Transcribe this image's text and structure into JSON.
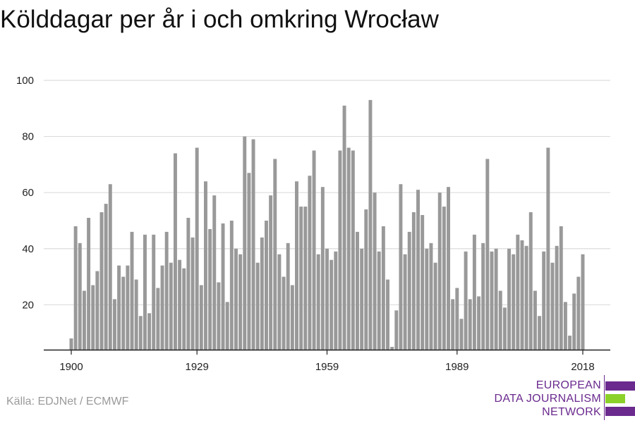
{
  "title": "Kölddagar per år i och omkring Wrocław",
  "source": "Källa: EDJNet / ECMWF",
  "logo": {
    "lines": [
      "EUROPEAN",
      "DATA JOURNALISM",
      "NETWORK"
    ],
    "colors": {
      "purple": "#6a2a8e",
      "green": "#8cd12a"
    }
  },
  "colors": {
    "bar": "#999999",
    "grid": "#dddddd",
    "axis": "#222222"
  },
  "chart_data": {
    "type": "bar",
    "title": "Kölddagar per år i och omkring Wrocław",
    "xlabel": "",
    "ylabel": "",
    "x": [
      1900,
      1901,
      1902,
      1903,
      1904,
      1905,
      1906,
      1907,
      1908,
      1909,
      1910,
      1911,
      1912,
      1913,
      1914,
      1915,
      1916,
      1917,
      1918,
      1919,
      1920,
      1921,
      1922,
      1923,
      1924,
      1925,
      1926,
      1927,
      1928,
      1929,
      1930,
      1931,
      1932,
      1933,
      1934,
      1935,
      1936,
      1937,
      1938,
      1939,
      1940,
      1941,
      1942,
      1943,
      1944,
      1945,
      1946,
      1947,
      1948,
      1949,
      1950,
      1951,
      1952,
      1953,
      1954,
      1955,
      1956,
      1957,
      1958,
      1959,
      1960,
      1961,
      1962,
      1963,
      1964,
      1965,
      1966,
      1967,
      1968,
      1969,
      1970,
      1971,
      1972,
      1973,
      1974,
      1975,
      1976,
      1977,
      1978,
      1979,
      1980,
      1981,
      1982,
      1983,
      1984,
      1985,
      1986,
      1987,
      1988,
      1989,
      1990,
      1991,
      1992,
      1993,
      1994,
      1995,
      1996,
      1997,
      1998,
      1999,
      2000,
      2001,
      2002,
      2003,
      2004,
      2005,
      2006,
      2007,
      2008,
      2009,
      2010,
      2011,
      2012,
      2013,
      2014,
      2015,
      2016,
      2017,
      2018
    ],
    "values": [
      8,
      48,
      42,
      25,
      51,
      27,
      32,
      53,
      56,
      63,
      22,
      34,
      30,
      34,
      46,
      29,
      16,
      45,
      17,
      45,
      26,
      34,
      46,
      35,
      74,
      36,
      33,
      51,
      44,
      76,
      27,
      64,
      47,
      59,
      28,
      49,
      21,
      50,
      40,
      38,
      80,
      67,
      79,
      35,
      44,
      50,
      59,
      72,
      38,
      30,
      42,
      27,
      64,
      55,
      55,
      66,
      75,
      38,
      62,
      40,
      36,
      39,
      75,
      91,
      76,
      75,
      46,
      40,
      54,
      93,
      60,
      39,
      48,
      29,
      5,
      18,
      63,
      38,
      46,
      53,
      61,
      52,
      40,
      42,
      35,
      60,
      55,
      62,
      22,
      26,
      15,
      39,
      22,
      45,
      23,
      42,
      72,
      39,
      40,
      25,
      19,
      40,
      38,
      45,
      43,
      41,
      53,
      25,
      16,
      39,
      76,
      35,
      41,
      48,
      21,
      9,
      24,
      30,
      38
    ],
    "x_ticks": [
      1900,
      1929,
      1959,
      1989,
      2018
    ],
    "y_ticks": [
      20,
      40,
      60,
      80,
      100
    ],
    "ylim": [
      4,
      100
    ],
    "xlim": [
      1900,
      2018
    ],
    "grid": true,
    "legend": "none"
  }
}
